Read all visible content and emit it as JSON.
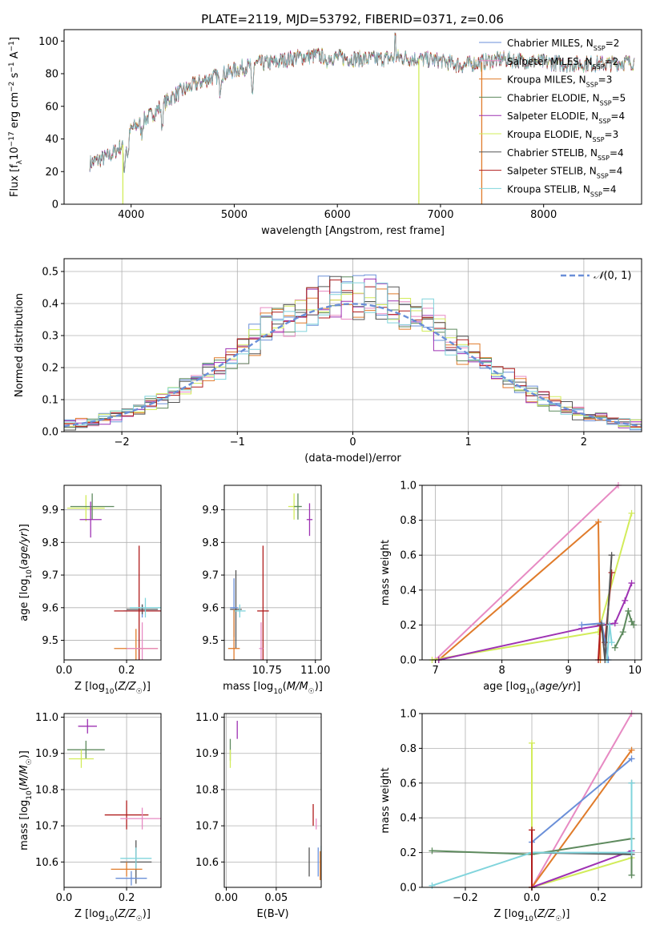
{
  "figure": {
    "title": "PLATE=2119, MJD=53792, FIBERID=0371, z=0.06"
  },
  "chart_data": [
    {
      "type": "line",
      "panel": "spectrum",
      "xlabel": "wavelength [Angstrom, rest frame]",
      "ylabel": "Flux [f_λ 10^-17 erg cm^-2 s^-1 A^-1]",
      "xlim": [
        3350,
        8950
      ],
      "ylim": [
        0,
        107
      ],
      "xticks": [
        4000,
        5000,
        6000,
        7000,
        8000
      ],
      "yticks": [
        0,
        20,
        40,
        60,
        80,
        100
      ],
      "legend_position": "right",
      "legend": [
        {
          "label": "Chabrier MILES, N_SSP=2",
          "sub": "SSP",
          "n": "2",
          "prefix": "Chabrier MILES, N",
          "color": "#6a8fd8"
        },
        {
          "label": "Salpeter MILES, N_SSP=2",
          "sub": "SSP",
          "n": "2",
          "prefix": "Salpeter MILES, N",
          "color": "#e78ac3"
        },
        {
          "label": "Kroupa MILES, N_SSP=3",
          "sub": "SSP",
          "n": "3",
          "prefix": "Kroupa MILES, N",
          "color": "#e07b2a"
        },
        {
          "label": "Chabrier ELODIE, N_SSP=5",
          "sub": "SSP",
          "n": "5",
          "prefix": "Chabrier ELODIE, N",
          "color": "#5e8a5e"
        },
        {
          "label": "Salpeter ELODIE, N_SSP=4",
          "sub": "SSP",
          "n": "4",
          "prefix": "Salpeter ELODIE, N",
          "color": "#9e32b3"
        },
        {
          "label": "Kroupa ELODIE, N_SSP=3",
          "sub": "SSP",
          "n": "3",
          "prefix": "Kroupa ELODIE, N",
          "color": "#d2ec5a"
        },
        {
          "label": "Chabrier STELIB, N_SSP=4",
          "sub": "SSP",
          "n": "4",
          "prefix": "Chabrier STELIB, N",
          "color": "#555555"
        },
        {
          "label": "Salpeter STELIB, N_SSP=4",
          "sub": "SSP",
          "n": "4",
          "prefix": "Salpeter STELIB, N",
          "color": "#b01c1c"
        },
        {
          "label": "Kroupa STELIB, N_SSP=4",
          "sub": "SSP",
          "n": "4",
          "prefix": "Kroupa STELIB, N",
          "color": "#80d4dc"
        }
      ],
      "continuum": [
        [
          3600,
          25
        ],
        [
          3800,
          30
        ],
        [
          3950,
          38
        ],
        [
          4000,
          46
        ],
        [
          4200,
          55
        ],
        [
          4400,
          66
        ],
        [
          4600,
          73
        ],
        [
          4800,
          78
        ],
        [
          5000,
          82
        ],
        [
          5200,
          86
        ],
        [
          5400,
          87
        ],
        [
          5600,
          90
        ],
        [
          5800,
          91
        ],
        [
          6000,
          90
        ],
        [
          6200,
          89
        ],
        [
          6400,
          89
        ],
        [
          6600,
          90
        ],
        [
          6800,
          89
        ],
        [
          7000,
          88
        ],
        [
          7200,
          85
        ],
        [
          7400,
          87
        ],
        [
          7600,
          89
        ],
        [
          7800,
          88
        ],
        [
          8000,
          87
        ],
        [
          8200,
          86
        ],
        [
          8400,
          86
        ],
        [
          8600,
          86
        ],
        [
          8800,
          87
        ]
      ],
      "absorption_dips": [
        [
          3934,
          18
        ],
        [
          3968,
          14
        ],
        [
          4102,
          8
        ],
        [
          4300,
          14
        ],
        [
          4861,
          10
        ],
        [
          5175,
          22
        ],
        [
          5890,
          8
        ]
      ],
      "emission_spike": [
        6563,
        104
      ],
      "artifacts": [
        {
          "x": 3920,
          "to": 0,
          "color": "#d2ec5a"
        },
        {
          "x": 6790,
          "to": 0,
          "color": "#d2ec5a"
        },
        {
          "x": 7400,
          "to": 0,
          "color": "#e07b2a"
        }
      ]
    },
    {
      "type": "histogram",
      "panel": "residuals",
      "xlabel": "(data-model)/error",
      "ylabel": "Normed distribution",
      "xlim": [
        -2.5,
        2.5
      ],
      "ylim": [
        0,
        0.54
      ],
      "xticks": [
        -2,
        -1,
        0,
        1,
        2
      ],
      "yticks": [
        0.0,
        0.1,
        0.2,
        0.3,
        0.4,
        0.5
      ],
      "bin_width": 0.1,
      "legend": "N(0,1)",
      "reference_curve": "gaussian(0,1)",
      "reference_color": "#6a8fd8"
    },
    {
      "type": "scatter",
      "panel": "age-vs-Z",
      "xlabel": "Z [log10(Z/Z☉)]",
      "ylabel": "age  [log10(age/yr)]",
      "xlim": [
        0.0,
        0.31
      ],
      "ylim": [
        9.44,
        9.975
      ],
      "xticks": [
        0.0,
        0.2
      ],
      "yticks": [
        9.5,
        9.6,
        9.7,
        9.8,
        9.9
      ],
      "points": [
        {
          "x": 0.07,
          "y": 9.905,
          "ex": 0.06,
          "ey": 0.04,
          "color": "#d2ec5a"
        },
        {
          "x": 0.09,
          "y": 9.91,
          "ex": 0.07,
          "ey": 0.04,
          "color": "#5e8a5e"
        },
        {
          "x": 0.085,
          "y": 9.87,
          "ex": 0.035,
          "ey": 0.055,
          "color": "#9e32b3"
        },
        {
          "x": 0.25,
          "y": 9.59,
          "ex": 0.06,
          "ey": 0.02,
          "color": "#6a8fd8"
        },
        {
          "x": 0.25,
          "y": 9.595,
          "ex": 0.05,
          "ey": 0.015,
          "color": "#555555"
        },
        {
          "x": 0.24,
          "y": 9.59,
          "ex": 0.08,
          "ey": 0.2,
          "color": "#b01c1c"
        },
        {
          "x": 0.26,
          "y": 9.6,
          "ex": 0.05,
          "ey": 0.03,
          "color": "#80d4dc"
        },
        {
          "x": 0.23,
          "y": 9.475,
          "ex": 0.07,
          "ey": 0.06,
          "color": "#e07b2a"
        },
        {
          "x": 0.25,
          "y": 9.475,
          "ex": 0.05,
          "ey": 0.08,
          "color": "#e78ac3"
        }
      ]
    },
    {
      "type": "scatter",
      "panel": "age-vs-mass",
      "xlabel": "mass [log10(M/M☉)]",
      "ylabel": "",
      "xlim": [
        10.53,
        11.03
      ],
      "ylim": [
        9.44,
        9.975
      ],
      "xticks": [
        10.75,
        11.0
      ],
      "yticks": [
        9.5,
        9.6,
        9.7,
        9.8,
        9.9
      ],
      "points": [
        {
          "x": 10.89,
          "y": 9.91,
          "ex": 0.03,
          "ey": 0.04,
          "color": "#d2ec5a"
        },
        {
          "x": 10.91,
          "y": 9.91,
          "ex": 0.02,
          "ey": 0.04,
          "color": "#5e8a5e"
        },
        {
          "x": 10.97,
          "y": 9.87,
          "ex": 0.015,
          "ey": 0.05,
          "color": "#9e32b3"
        },
        {
          "x": 10.59,
          "y": 9.595,
          "ex": 0.03,
          "ey": 0.12,
          "color": "#555555"
        },
        {
          "x": 10.58,
          "y": 9.6,
          "ex": 0.02,
          "ey": 0.09,
          "color": "#6a8fd8"
        },
        {
          "x": 10.61,
          "y": 9.59,
          "ex": 0.03,
          "ey": 0.02,
          "color": "#80d4dc"
        },
        {
          "x": 10.73,
          "y": 9.59,
          "ex": 0.03,
          "ey": 0.2,
          "color": "#b01c1c"
        },
        {
          "x": 10.58,
          "y": 9.475,
          "ex": 0.03,
          "ey": 0.12,
          "color": "#e07b2a"
        },
        {
          "x": 10.72,
          "y": 9.475,
          "ex": 0.01,
          "ey": 0.08,
          "color": "#e78ac3"
        }
      ]
    },
    {
      "type": "line",
      "panel": "weight-vs-age",
      "xlabel": "age  [log10(age/yr)]",
      "ylabel": "mass weight",
      "xlim": [
        6.8,
        10.1
      ],
      "ylim": [
        0.0,
        1.0
      ],
      "xticks": [
        7,
        8,
        9,
        10
      ],
      "yticks": [
        0.0,
        0.2,
        0.4,
        0.6,
        0.8,
        1.0
      ],
      "series": [
        {
          "color": "#e78ac3",
          "x": [
            7.0,
            9.75
          ],
          "y": [
            0.0,
            1.0
          ]
        },
        {
          "color": "#e07b2a",
          "x": [
            7.05,
            9.45,
            9.48
          ],
          "y": [
            0.0,
            0.79,
            0.0
          ]
        },
        {
          "color": "#d2ec5a",
          "x": [
            6.95,
            9.45,
            9.95
          ],
          "y": [
            0.0,
            0.16,
            0.84
          ]
        },
        {
          "color": "#9e32b3",
          "x": [
            7.05,
            9.2,
            9.7,
            9.85,
            9.95
          ],
          "y": [
            0.0,
            0.18,
            0.21,
            0.34,
            0.44
          ]
        },
        {
          "color": "#b01c1c",
          "x": [
            9.45,
            9.48,
            9.55,
            9.65
          ],
          "y": [
            0.0,
            0.2,
            0.1,
            0.5
          ]
        },
        {
          "color": "#6a8fd8",
          "x": [
            9.2,
            9.5,
            9.6
          ],
          "y": [
            0.2,
            0.21,
            0.0
          ]
        },
        {
          "color": "#555555",
          "x": [
            9.5,
            9.55,
            9.65
          ],
          "y": [
            0.2,
            0.0,
            0.6
          ]
        },
        {
          "color": "#5e8a5e",
          "x": [
            9.7,
            9.82,
            9.9,
            9.95,
            9.98
          ],
          "y": [
            0.07,
            0.16,
            0.28,
            0.22,
            0.2
          ]
        },
        {
          "color": "#80d4dc",
          "x": [
            9.58,
            9.62,
            9.65
          ],
          "y": [
            0.0,
            0.2,
            0.1
          ]
        }
      ]
    },
    {
      "type": "scatter",
      "panel": "mass-vs-Z",
      "xlabel": "Z [log10(Z/Z☉)]",
      "ylabel": "mass [log10(M/M☉)]",
      "xlim": [
        0.0,
        0.31
      ],
      "ylim": [
        10.53,
        11.01
      ],
      "xticks": [
        0.0,
        0.2
      ],
      "yticks": [
        10.6,
        10.7,
        10.8,
        10.9,
        11.0
      ],
      "points": [
        {
          "x": 0.075,
          "y": 10.975,
          "ex": 0.03,
          "ey": 0.02,
          "color": "#9e32b3"
        },
        {
          "x": 0.07,
          "y": 10.91,
          "ex": 0.06,
          "ey": 0.025,
          "color": "#5e8a5e"
        },
        {
          "x": 0.055,
          "y": 10.885,
          "ex": 0.04,
          "ey": 0.025,
          "color": "#d2ec5a"
        },
        {
          "x": 0.2,
          "y": 10.73,
          "ex": 0.07,
          "ey": 0.04,
          "color": "#b01c1c"
        },
        {
          "x": 0.25,
          "y": 10.72,
          "ex": 0.07,
          "ey": 0.03,
          "color": "#e78ac3"
        },
        {
          "x": 0.23,
          "y": 10.6,
          "ex": 0.05,
          "ey": 0.06,
          "color": "#555555"
        },
        {
          "x": 0.23,
          "y": 10.61,
          "ex": 0.05,
          "ey": 0.03,
          "color": "#80d4dc"
        },
        {
          "x": 0.2,
          "y": 10.58,
          "ex": 0.05,
          "ey": 0.02,
          "color": "#e07b2a"
        },
        {
          "x": 0.215,
          "y": 10.555,
          "ex": 0.05,
          "ey": 0.02,
          "color": "#6a8fd8"
        }
      ]
    },
    {
      "type": "scatter",
      "panel": "mass-vs-ebv",
      "xlabel": "E(B-V)",
      "ylabel": "",
      "xlim": [
        -0.002,
        0.095
      ],
      "ylim": [
        10.53,
        11.01
      ],
      "xticks": [
        0.0,
        0.05
      ],
      "yticks": [
        10.6,
        10.7,
        10.8,
        10.9,
        11.0
      ],
      "points": [
        {
          "x": 0.011,
          "y": 10.965,
          "ex": 0,
          "ey": 0.025,
          "color": "#9e32b3"
        },
        {
          "x": 0.004,
          "y": 10.91,
          "ex": 0,
          "ey": 0.03,
          "color": "#5e8a5e"
        },
        {
          "x": 0.004,
          "y": 10.885,
          "ex": 0,
          "ey": 0.025,
          "color": "#d2ec5a"
        },
        {
          "x": 0.087,
          "y": 10.73,
          "ex": 0,
          "ey": 0.03,
          "color": "#b01c1c"
        },
        {
          "x": 0.09,
          "y": 10.705,
          "ex": 0,
          "ey": 0.015,
          "color": "#e78ac3"
        },
        {
          "x": 0.083,
          "y": 10.6,
          "ex": 0,
          "ey": 0.04,
          "color": "#555555"
        },
        {
          "x": 0.092,
          "y": 10.6,
          "ex": 0,
          "ey": 0.04,
          "color": "#6a8fd8"
        },
        {
          "x": 0.094,
          "y": 10.59,
          "ex": 0,
          "ey": 0.04,
          "color": "#e07b2a"
        },
        {
          "x": 0.095,
          "y": 10.625,
          "ex": 0,
          "ey": 0.02,
          "color": "#80d4dc"
        }
      ]
    },
    {
      "type": "line",
      "panel": "weight-vs-Z",
      "xlabel": "Z [log10(Z/Z☉)]",
      "ylabel": "mass weight",
      "xlim": [
        -0.33,
        0.33
      ],
      "ylim": [
        0.0,
        1.0
      ],
      "xticks": [
        -0.2,
        0.0,
        0.2
      ],
      "yticks": [
        0.0,
        0.2,
        0.4,
        0.6,
        0.8,
        1.0
      ],
      "series": [
        {
          "color": "#e78ac3",
          "x": [
            0.0,
            0.3
          ],
          "y": [
            0.0,
            1.0
          ]
        },
        {
          "color": "#e07b2a",
          "x": [
            0.0,
            0.3
          ],
          "y": [
            0.0,
            0.79
          ]
        },
        {
          "color": "#6a8fd8",
          "x": [
            0.0,
            0.3
          ],
          "y": [
            0.26,
            0.74
          ]
        },
        {
          "color": "#d2ec5a",
          "x": [
            0.0,
            0.0,
            0.0,
            0.3
          ],
          "y": [
            0.83,
            0.0,
            0.0,
            0.17
          ]
        },
        {
          "color": "#9e32b3",
          "x": [
            0.0,
            0.3
          ],
          "y": [
            0.0,
            0.21
          ]
        },
        {
          "color": "#555555",
          "x": [
            0.0,
            0.3,
            0.3
          ],
          "y": [
            0.2,
            0.19,
            0.6
          ]
        },
        {
          "color": "#5e8a5e",
          "x": [
            -0.3,
            0.0,
            0.3,
            0.3
          ],
          "y": [
            0.21,
            0.19,
            0.28,
            0.07
          ]
        },
        {
          "color": "#80d4dc",
          "x": [
            -0.3,
            0.0,
            0.3,
            0.3
          ],
          "y": [
            0.01,
            0.2,
            0.2,
            0.6
          ]
        },
        {
          "color": "#b01c1c",
          "x": [
            0.0,
            0.0
          ],
          "y": [
            0.33,
            0.0
          ]
        }
      ]
    }
  ]
}
